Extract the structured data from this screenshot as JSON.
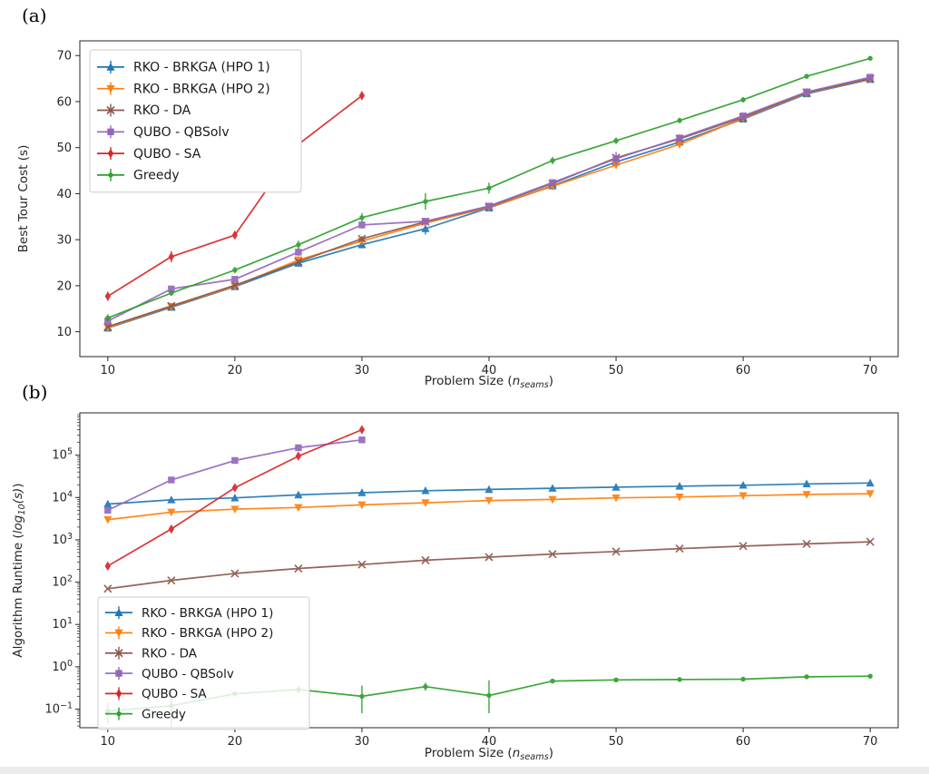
{
  "figure": {
    "panel_a_label": "(a)",
    "panel_b_label": "(b)",
    "background": "#ffffff"
  },
  "colors": {
    "blue": "#1f77b4",
    "orange": "#ff7f0e",
    "brown": "#8c564b",
    "purple": "#9467bd",
    "red": "#d62728",
    "green": "#2ca02c",
    "axis": "#262626",
    "tick_label": "#262626",
    "legend_border": "#cccccc",
    "legend_bg": "#ffffff"
  },
  "chart_data": [
    {
      "id": "a",
      "type": "line",
      "yscale": "linear",
      "xlabel": "Problem Size (n_seams)",
      "ylabel": "Best Tour Cost (s)",
      "xlabel_parts": [
        {
          "t": "Problem Size ("
        },
        {
          "t": "n",
          "i": true
        },
        {
          "t": "seams",
          "i": true,
          "sub": true
        },
        {
          "t": ")"
        }
      ],
      "ylabel_parts": [
        {
          "t": "Best Tour Cost (s)"
        }
      ],
      "xticks": [
        10,
        20,
        30,
        40,
        50,
        60,
        70
      ],
      "yticks": [
        10,
        20,
        30,
        40,
        50,
        60,
        70
      ],
      "xlim": [
        7.8,
        72.2
      ],
      "ylim": [
        4.6,
        73.2
      ],
      "legend_position": "upper-left",
      "series": [
        {
          "name": "RKO - BRKGA (HPO 1)",
          "color_key": "blue",
          "marker": "triangle-up",
          "x": [
            10,
            15,
            20,
            25,
            30,
            35,
            40,
            45,
            50,
            55,
            60,
            65,
            70
          ],
          "y": [
            10.8,
            15.3,
            19.8,
            24.9,
            28.9,
            32.4,
            36.9,
            41.7,
            46.9,
            51.2,
            56.2,
            61.7,
            64.8
          ],
          "err": [
            0.3,
            0.4,
            0.4,
            0.5,
            0.8,
            1.3,
            0.5,
            0.6,
            0.5,
            0.5,
            0.6,
            0.8,
            0.6
          ]
        },
        {
          "name": "RKO - BRKGA (HPO 2)",
          "color_key": "orange",
          "marker": "triangle-down",
          "x": [
            10,
            15,
            20,
            25,
            30,
            35,
            40,
            45,
            50,
            55,
            60,
            65,
            70
          ],
          "y": [
            10.9,
            15.5,
            19.9,
            25.6,
            29.7,
            33.6,
            37.0,
            41.6,
            46.2,
            50.7,
            56.4,
            61.9,
            64.9
          ],
          "err": [
            0.3,
            0.4,
            0.4,
            0.6,
            0.8,
            0.7,
            0.5,
            0.5,
            0.5,
            0.6,
            0.7,
            0.9,
            0.7
          ]
        },
        {
          "name": "RKO - DA",
          "color_key": "brown",
          "marker": "x",
          "x": [
            10,
            15,
            20,
            25,
            30,
            35,
            40,
            45,
            50,
            55,
            60,
            65,
            70
          ],
          "y": [
            11.1,
            15.6,
            20.1,
            25.2,
            30.2,
            33.9,
            37.2,
            42.2,
            47.8,
            51.9,
            56.6,
            62.0,
            65.0
          ],
          "err": [
            0.3,
            0.3,
            0.4,
            0.5,
            0.6,
            0.6,
            0.5,
            0.5,
            0.6,
            0.6,
            0.6,
            0.7,
            0.6
          ]
        },
        {
          "name": "QUBO - QBSolv",
          "color_key": "purple",
          "marker": "square",
          "x": [
            10,
            15,
            20,
            25,
            30,
            35,
            40,
            45,
            50,
            55,
            60,
            65,
            70
          ],
          "y": [
            12.3,
            19.3,
            21.4,
            27.3,
            33.2,
            34.0,
            37.3,
            42.4,
            47.6,
            52.1,
            56.9,
            62.1,
            65.3
          ],
          "err": [
            0.5,
            0.5,
            0.6,
            0.8,
            0.8,
            0.7,
            0.6,
            0.7,
            1.5,
            0.8,
            0.7,
            0.8,
            0.7
          ]
        },
        {
          "name": "QUBO - SA",
          "color_key": "red",
          "marker": "thin-diamond",
          "x": [
            10,
            15,
            20,
            25,
            30
          ],
          "y": [
            17.7,
            26.3,
            31.0,
            50.7,
            61.3
          ],
          "err": [
            1.0,
            1.2,
            0.8,
            1.2,
            0.9
          ]
        },
        {
          "name": "Greedy",
          "color_key": "green",
          "marker": "dot",
          "x": [
            10,
            15,
            20,
            25,
            30,
            35,
            40,
            45,
            50,
            55,
            60,
            65,
            70
          ],
          "y": [
            13.0,
            18.4,
            23.4,
            28.9,
            34.8,
            38.3,
            41.2,
            47.2,
            51.5,
            55.9,
            60.4,
            65.5,
            69.4
          ],
          "err": [
            0.8,
            0.6,
            0.7,
            0.9,
            1.0,
            1.8,
            1.2,
            0.8,
            0.7,
            0.6,
            0.6,
            0.5,
            0.5
          ]
        }
      ]
    },
    {
      "id": "b",
      "type": "line",
      "yscale": "log",
      "xlabel": "Problem Size (n_seams)",
      "ylabel": "Algorithm Runtime (log_10(s))",
      "xlabel_parts": [
        {
          "t": "Problem Size ("
        },
        {
          "t": "n",
          "i": true
        },
        {
          "t": "seams",
          "i": true,
          "sub": true
        },
        {
          "t": ")"
        }
      ],
      "ylabel_parts": [
        {
          "t": "Algorithm Runtime ("
        },
        {
          "t": "log",
          "i": true
        },
        {
          "t": "10",
          "i": true,
          "sub": true
        },
        {
          "t": "(s)",
          "i": true
        },
        {
          "t": ")"
        }
      ],
      "xticks": [
        10,
        20,
        30,
        40,
        50,
        60,
        70
      ],
      "yticks_exp": [
        -1,
        0,
        1,
        2,
        3,
        4,
        5
      ],
      "xlim": [
        7.8,
        72.2
      ],
      "ylim_exp": [
        -1.44,
        6.0
      ],
      "legend_position": "lower-left",
      "series": [
        {
          "name": "RKO - BRKGA (HPO 1)",
          "color_key": "blue",
          "marker": "triangle-up",
          "x": [
            10,
            15,
            20,
            25,
            30,
            35,
            40,
            45,
            50,
            55,
            60,
            65,
            70
          ],
          "y": [
            7000,
            8800,
            9800,
            11500,
            13000,
            14500,
            15500,
            16500,
            17500,
            18500,
            19500,
            21000,
            22000
          ],
          "err": [
            400,
            400,
            400,
            450,
            500,
            500,
            550,
            550,
            600,
            600,
            650,
            700,
            700
          ]
        },
        {
          "name": "RKO - BRKGA (HPO 2)",
          "color_key": "orange",
          "marker": "triangle-down",
          "x": [
            10,
            15,
            20,
            25,
            30,
            35,
            40,
            45,
            50,
            55,
            60,
            65,
            70
          ],
          "y": [
            3000,
            4500,
            5300,
            5800,
            6700,
            7500,
            8500,
            9000,
            9800,
            10300,
            11000,
            11800,
            12300
          ],
          "err": [
            150,
            200,
            220,
            250,
            270,
            300,
            320,
            350,
            370,
            400,
            420,
            450,
            470
          ]
        },
        {
          "name": "RKO - DA",
          "color_key": "brown",
          "marker": "x",
          "x": [
            10,
            15,
            20,
            25,
            30,
            35,
            40,
            45,
            50,
            55,
            60,
            65,
            70
          ],
          "y": [
            70,
            110,
            160,
            210,
            260,
            330,
            390,
            460,
            530,
            620,
            710,
            800,
            900
          ],
          "err": [
            3,
            4,
            5,
            6,
            8,
            10,
            12,
            14,
            16,
            18,
            20,
            24,
            26
          ]
        },
        {
          "name": "QUBO - QBSolv",
          "color_key": "purple",
          "marker": "square",
          "x": [
            10,
            15,
            20,
            25,
            30
          ],
          "y": [
            5000,
            26000,
            75000,
            150000,
            230000
          ],
          "err": [
            500,
            1800,
            5000,
            12000,
            20000
          ]
        },
        {
          "name": "QUBO - SA",
          "color_key": "red",
          "marker": "thin-diamond",
          "x": [
            10,
            15,
            20,
            25,
            30
          ],
          "y": [
            240,
            1800,
            17000,
            95000,
            400000
          ],
          "err": [
            30,
            250,
            2500,
            14000,
            70000
          ]
        },
        {
          "name": "Greedy",
          "color_key": "green",
          "marker": "dot",
          "x": [
            10,
            15,
            20,
            25,
            30,
            35,
            40,
            45,
            50,
            55,
            60,
            65,
            70
          ],
          "y": [
            0.09,
            0.12,
            0.23,
            0.29,
            0.2,
            0.34,
            0.21,
            0.46,
            0.49,
            0.5,
            0.51,
            0.58,
            0.6
          ],
          "err_lo": [
            0.045,
            0.12,
            0.03,
            0.05,
            0.12,
            0.07,
            0.13,
            0.03,
            0.02,
            0.02,
            0.02,
            0.03,
            0.03
          ],
          "err_hi": [
            0.05,
            0.14,
            0.03,
            0.06,
            0.16,
            0.08,
            0.27,
            0.03,
            0.02,
            0.02,
            0.02,
            0.03,
            0.03
          ]
        }
      ]
    }
  ]
}
